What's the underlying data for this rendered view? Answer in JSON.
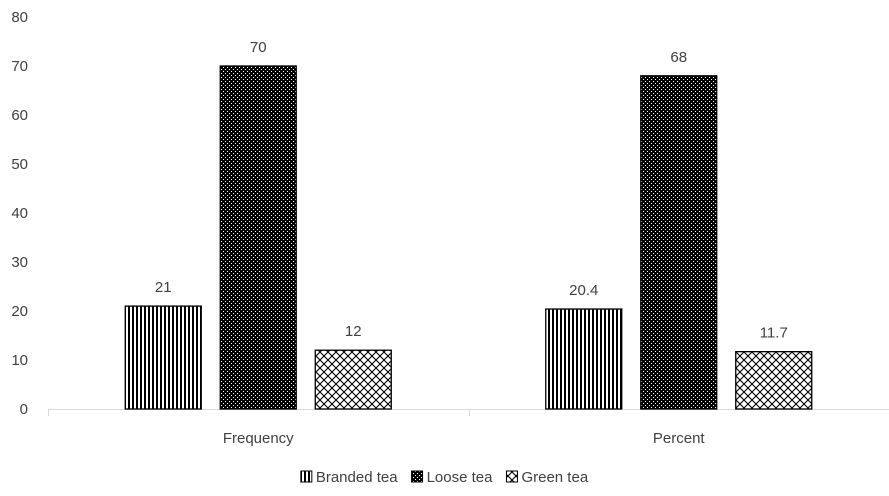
{
  "chart_data": {
    "type": "bar",
    "title": "",
    "xlabel": "",
    "ylabel": "",
    "categories": [
      "Frequency",
      "Percent"
    ],
    "series": [
      {
        "name": "Branded tea",
        "values": [
          21,
          20.4
        ],
        "pattern": "vertical-stripes"
      },
      {
        "name": "Loose tea",
        "values": [
          70,
          68
        ],
        "pattern": "dotted-dark"
      },
      {
        "name": "Green tea",
        "values": [
          12,
          11.7
        ],
        "pattern": "diagonal-lattice"
      }
    ],
    "data_labels": [
      [
        "21",
        "20.4"
      ],
      [
        "70",
        "68"
      ],
      [
        "12",
        "11.7"
      ]
    ],
    "ylim": [
      0,
      80
    ],
    "yticks": [
      0,
      10,
      20,
      30,
      40,
      50,
      60,
      70,
      80
    ],
    "grid": false,
    "legend_position": "bottom",
    "colors": {
      "bar_stroke": "#000000",
      "text": "#404040",
      "axis": "#d9d9d9"
    }
  }
}
